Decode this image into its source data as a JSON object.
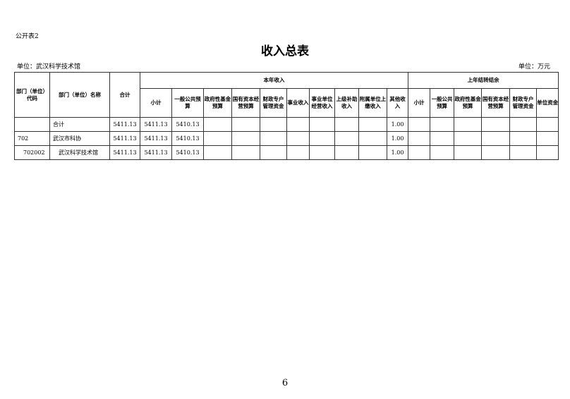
{
  "code_label": "公开表2",
  "title": "收入总表",
  "unit_left": "单位：武汉科学技术馆",
  "unit_right": "单位：万元",
  "headers": {
    "dept_code": "部门（单位）代码",
    "dept_name": "部门（单位）名称",
    "total": "合计",
    "current_year": "本年收入",
    "carryover": "上年结转结余",
    "current_cols": [
      "小计",
      "一般公共预算",
      "政府性基金预算",
      "国有资本经营预算",
      "财政专户管理资金",
      "事业收入",
      "事业单位经营收入",
      "上级补助收入",
      "附属单位上缴收入",
      "其他收入"
    ],
    "carryover_cols": [
      "小计",
      "一般公共预算",
      "政府性基金预算",
      "国有资本经营预算",
      "财政专户管理资金",
      "单位资金"
    ]
  },
  "rows": [
    {
      "code": "",
      "name": "合计",
      "values": [
        "5411.13",
        "5411.13",
        "5410.13",
        "",
        "",
        "",
        "",
        "",
        "",
        "",
        "1.00",
        "",
        "",
        "",
        "",
        "",
        ""
      ]
    },
    {
      "code": "702",
      "name": "武汉市科协",
      "values": [
        "5411.13",
        "5411.13",
        "5410.13",
        "",
        "",
        "",
        "",
        "",
        "",
        "",
        "1.00",
        "",
        "",
        "",
        "",
        "",
        ""
      ]
    },
    {
      "code": "702002",
      "name": "武汉科学技术馆",
      "values": [
        "5411.13",
        "5411.13",
        "5410.13",
        "",
        "",
        "",
        "",
        "",
        "",
        "",
        "1.00",
        "",
        "",
        "",
        "",
        "",
        ""
      ]
    }
  ],
  "page_number": "6"
}
